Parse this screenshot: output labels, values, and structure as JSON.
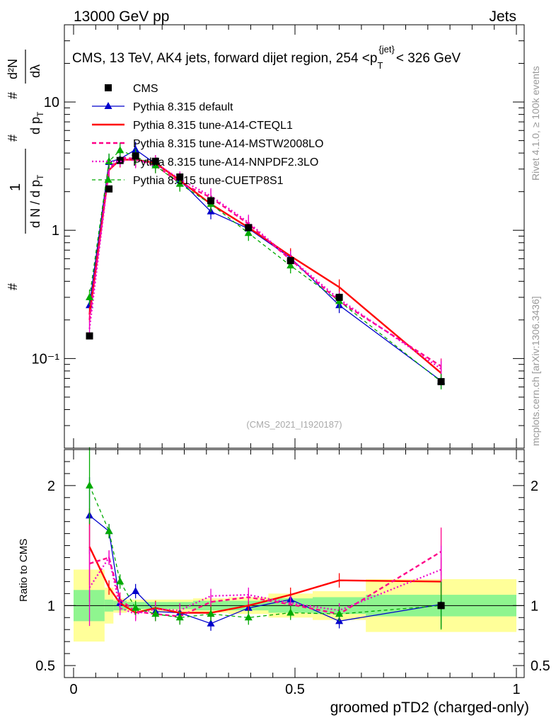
{
  "header": {
    "left": "13000 GeV pp",
    "right": "Jets"
  },
  "subtitle": {
    "prefix": "CMS, 13 TeV, AK4 jets, forward dijet region, 254 <p",
    "sub": "T",
    "sup": "{jet}",
    "suffix": "< 326 GeV"
  },
  "side_labels": {
    "rivet": "Rivet 4.1.0, ≥ 100k events",
    "mcplots": "mcplots.cern.ch [arXiv:1306.3436]"
  },
  "analysis_id": "(CMS_2021_I1920187)",
  "main_ylabel": {
    "hash": "#",
    "one": "1",
    "dn": "d N / d p",
    "dn_sub": "T",
    "dpt": "d p",
    "dpt_sub": "T",
    "dlambda": "dλ",
    "d2n": "d²N"
  },
  "ratio_ylabel": "Ratio to CMS",
  "xlabel": "groomed pTD2 (charged-only)",
  "colors": {
    "data": "#000000",
    "default": "#0000cc",
    "cteql1": "#ff0000",
    "mstw": "#ff0088",
    "nnpdf": "#ee00cc",
    "cuetp": "#00aa00",
    "band_inner": "#8ff58f",
    "band_outer": "#ffff99"
  },
  "chart_data": {
    "type": "line",
    "title": "CMS, 13 TeV, AK4 jets, forward dijet region, 254 < pT < 326 GeV",
    "xlabel": "groomed pTD2 (charged-only)",
    "ylabel": "1/N dN/dλ",
    "xlim": [
      0,
      1
    ],
    "ylim_main": [
      0.02,
      40
    ],
    "ylim_ratio": [
      0.4,
      2.3
    ],
    "x_ticks": [
      0,
      0.5,
      1
    ],
    "x_tick_labels": [
      "0",
      "0.5",
      "1"
    ],
    "main_y_ticks": [
      0.1,
      1,
      10
    ],
    "main_y_tick_labels": [
      "10⁻¹",
      "1",
      "10"
    ],
    "ratio_y_ticks": [
      0.5,
      1,
      2
    ],
    "ratio_y_tick_labels": [
      "0.5",
      "1",
      "2"
    ],
    "x": [
      0.036,
      0.08,
      0.105,
      0.14,
      0.185,
      0.24,
      0.31,
      0.395,
      0.49,
      0.6,
      0.83
    ],
    "bin_edges": [
      0,
      0.07,
      0.09,
      0.12,
      0.16,
      0.21,
      0.27,
      0.35,
      0.44,
      0.54,
      0.66,
      1.0
    ],
    "data": {
      "name": "CMS",
      "values": [
        0.15,
        2.1,
        3.5,
        3.8,
        3.45,
        2.6,
        1.7,
        1.05,
        0.58,
        0.3,
        0.066
      ],
      "band_inner": [
        0.13,
        0.05,
        0.04,
        0.03,
        0.03,
        0.03,
        0.04,
        0.04,
        0.06,
        0.07,
        0.09
      ],
      "band_outer": [
        0.3,
        0.15,
        0.06,
        0.05,
        0.05,
        0.05,
        0.06,
        0.07,
        0.1,
        0.12,
        0.22
      ]
    },
    "series": [
      {
        "name": "Pythia 8.315 default",
        "style": "solid-triangle",
        "values": [
          0.26,
          3.4,
          3.6,
          4.25,
          3.3,
          2.45,
          1.4,
          1.03,
          0.61,
          0.26,
          0.067
        ],
        "ratio": [
          1.75,
          1.62,
          1.02,
          1.12,
          0.95,
          0.94,
          0.85,
          0.98,
          1.05,
          0.87,
          1.01
        ]
      },
      {
        "name": "Pythia 8.315 tune-A14-CTEQL1",
        "style": "solid",
        "values": [
          0.22,
          2.95,
          3.55,
          3.55,
          3.35,
          2.45,
          1.6,
          1.05,
          0.63,
          0.36,
          0.077
        ],
        "ratio": [
          1.49,
          1.15,
          1.02,
          0.94,
          0.98,
          0.94,
          0.94,
          1.0,
          1.09,
          1.21,
          1.2
        ]
      },
      {
        "name": "Pythia 8.315 tune-A14-MSTW2008LO",
        "style": "dashed",
        "values": [
          0.2,
          3.0,
          3.7,
          3.6,
          3.2,
          2.35,
          1.8,
          1.12,
          0.59,
          0.28,
          0.087
        ],
        "ratio": [
          1.35,
          1.4,
          1.05,
          0.95,
          0.93,
          0.91,
          1.03,
          1.07,
          1.01,
          0.93,
          1.45
        ]
      },
      {
        "name": "Pythia 8.315 tune-A14-NNPDF2.3LO",
        "style": "dotted",
        "values": [
          0.17,
          2.95,
          3.6,
          3.5,
          3.35,
          2.5,
          1.85,
          1.15,
          0.6,
          0.29,
          0.083
        ],
        "ratio": [
          1.15,
          1.4,
          0.98,
          0.93,
          0.97,
          0.96,
          1.08,
          1.09,
          1.02,
          0.96,
          1.3
        ]
      },
      {
        "name": "Pythia 8.315 tune-CUETP8S1",
        "style": "dashed-triangle",
        "values": [
          0.3,
          3.45,
          4.2,
          3.75,
          3.2,
          2.3,
          1.6,
          0.95,
          0.53,
          0.28,
          0.066
        ],
        "ratio": [
          2.0,
          1.62,
          1.2,
          0.98,
          0.93,
          0.9,
          0.93,
          0.9,
          0.94,
          0.93,
          1.0
        ]
      }
    ]
  }
}
